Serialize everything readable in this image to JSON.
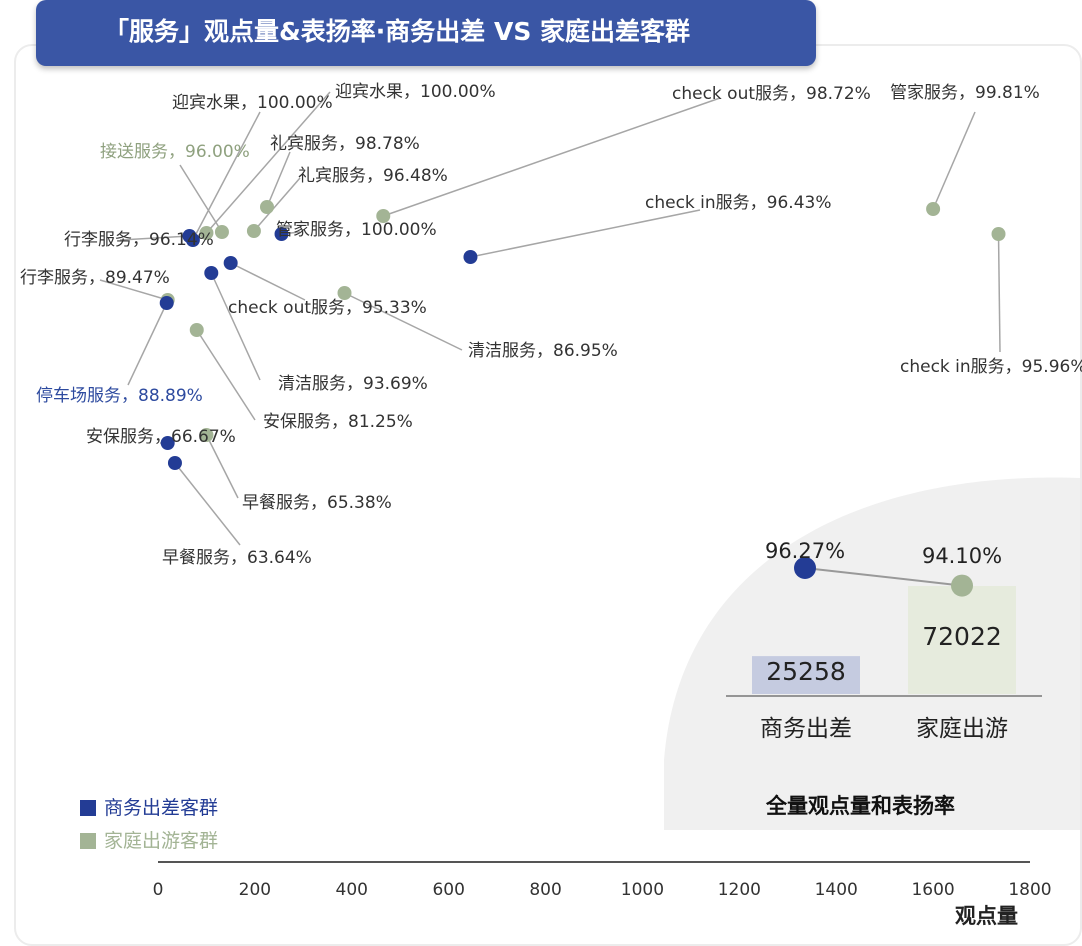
{
  "title": "「服务」观点量&表扬率·商务出差 VS 家庭出差客群",
  "colors": {
    "title_bg": "#3a56a5",
    "business": "#233c95",
    "family": "#a3b495",
    "label_family": "#8fa17f",
    "label_business": "#2d4a9f"
  },
  "legend": [
    {
      "name": "商务出差客群",
      "color": "#233c95"
    },
    {
      "name": "家庭出游客群",
      "color": "#a3b495"
    }
  ],
  "axis": {
    "xlabel": "观点量"
  },
  "chart_data": [
    {
      "type": "scatter",
      "xlabel": "观点量",
      "xlim": [
        0,
        1800
      ],
      "xticks": [
        0,
        200,
        400,
        600,
        800,
        1000,
        1200,
        1400,
        1600,
        1800
      ],
      "y_axis_shown": false,
      "point_labels_format": "服务, 表扬率",
      "series": [
        {
          "name": "商务出差客群",
          "points": [
            {
              "label": "迎宾水果，100.00%",
              "x": 72,
              "praise": 100.0
            },
            {
              "label": "行李服务，96.14%",
              "x": 65,
              "praise": 96.14
            },
            {
              "label": "管家服务，100.00%",
              "x": 255,
              "praise": 100.0
            },
            {
              "label": "check out服务，95.33%",
              "x": 150,
              "praise": 95.33
            },
            {
              "label": "清洁服务，93.69%",
              "x": 110,
              "praise": 93.69
            },
            {
              "label": "check in服务，96.43%",
              "x": 645,
              "praise": 96.43
            },
            {
              "label": "停车场服务，88.89%",
              "x": 18,
              "praise": 88.89
            },
            {
              "label": "安保服务，66.67%",
              "x": 20,
              "praise": 66.67
            },
            {
              "label": "早餐服务，63.64%",
              "x": 35,
              "praise": 63.64
            }
          ]
        },
        {
          "name": "家庭出游客群",
          "points": [
            {
              "label": "迎宾水果，100.00%",
              "x": 100,
              "praise": 100.0
            },
            {
              "label": "接送服务，96.00%",
              "x": 132,
              "praise": 96.0
            },
            {
              "label": "礼宾服务，98.78%",
              "x": 225,
              "praise": 98.78
            },
            {
              "label": "礼宾服务，96.48%",
              "x": 198,
              "praise": 96.48
            },
            {
              "label": "check out服务，98.72%",
              "x": 465,
              "praise": 98.72
            },
            {
              "label": "清洁服务，86.95%",
              "x": 385,
              "praise": 86.95
            },
            {
              "label": "行李服务，89.47%",
              "x": 20,
              "praise": 89.47
            },
            {
              "label": "安保服务，81.25%",
              "x": 80,
              "praise": 81.25
            },
            {
              "label": "早餐服务，65.38%",
              "x": 100,
              "praise": 65.38
            },
            {
              "label": "管家服务，99.81%",
              "x": 1600,
              "praise": 99.81
            },
            {
              "label": "check in服务，95.96%",
              "x": 1735,
              "praise": 95.96
            }
          ]
        }
      ]
    },
    {
      "type": "bar",
      "title": "全量观点量和表扬率",
      "categories": [
        "商务出差",
        "家庭出游"
      ],
      "values": [
        25258,
        72022
      ],
      "value_labels": [
        "25258",
        "72022"
      ],
      "praise_rates": [
        96.27,
        94.1
      ],
      "praise_labels": [
        "96.27%",
        "94.10%"
      ]
    }
  ]
}
